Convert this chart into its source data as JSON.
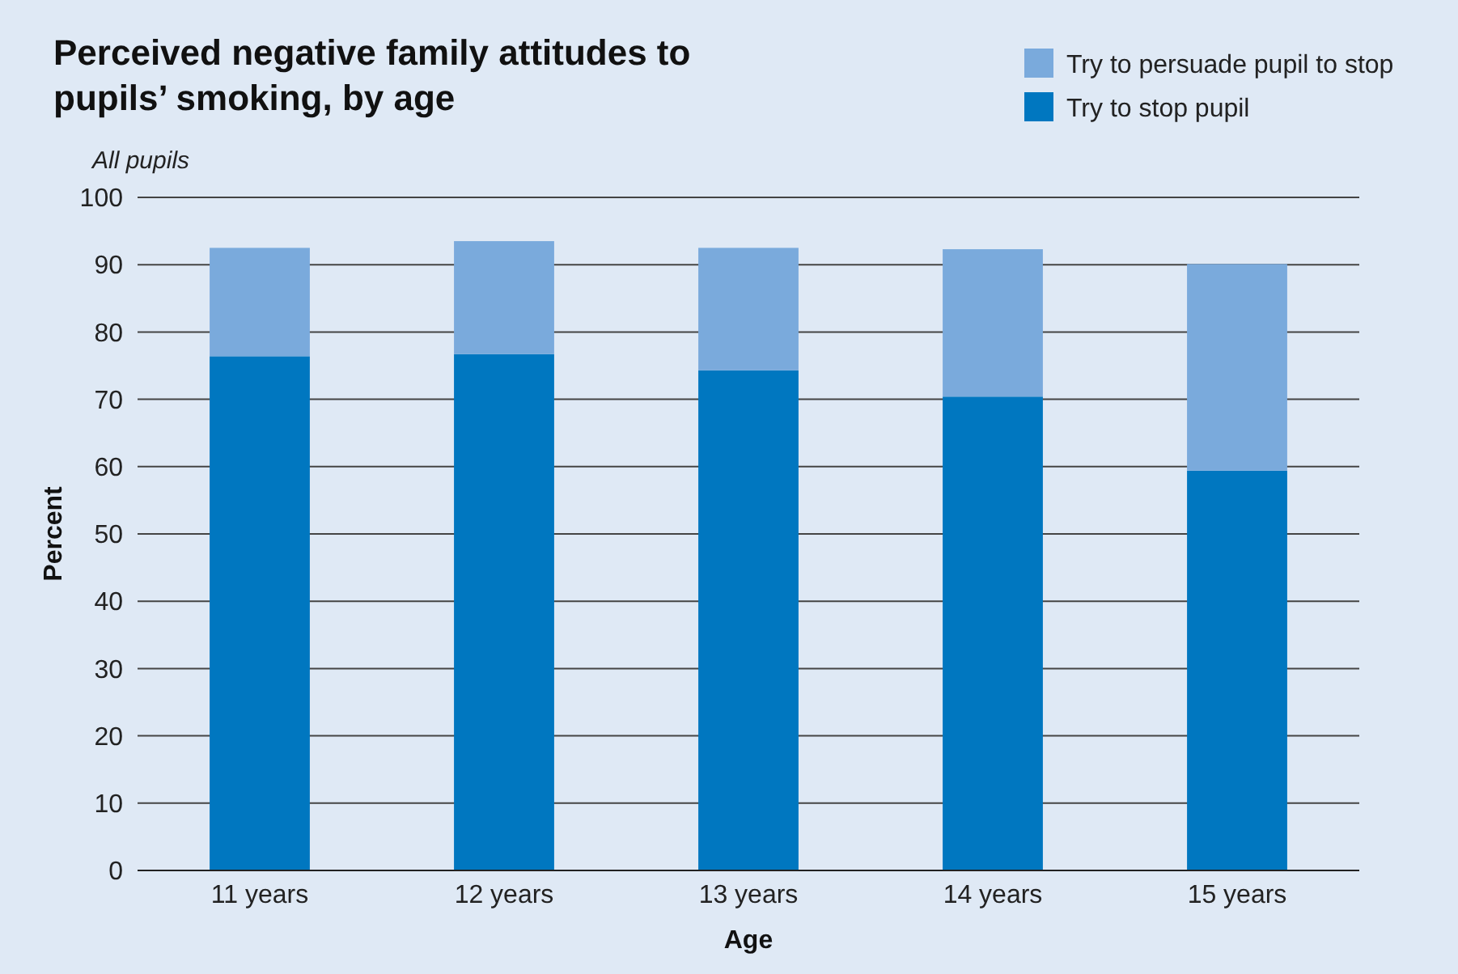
{
  "chart_data": {
    "type": "bar",
    "title": "Perceived negative family attitudes to pupils’ smoking, by age",
    "subtitle": "All pupils",
    "xlabel": "Age",
    "ylabel": "Percent",
    "categories": [
      "11 years",
      "12 years",
      "13 years",
      "14 years",
      "15 years"
    ],
    "stacked": true,
    "series": [
      {
        "name": "Try to stop pupil",
        "color": "#0077c0",
        "values": [
          76.4,
          76.7,
          74.3,
          70.4,
          59.4
        ]
      },
      {
        "name": "Try to persuade pupil to stop",
        "color": "#7aaadc",
        "values": [
          16.1,
          16.8,
          18.2,
          21.9,
          30.7
        ]
      }
    ],
    "ylim": [
      0,
      100
    ],
    "yticks": [
      0,
      10,
      20,
      30,
      40,
      50,
      60,
      70,
      80,
      90,
      100
    ],
    "grid": "y",
    "legend": "top right"
  }
}
